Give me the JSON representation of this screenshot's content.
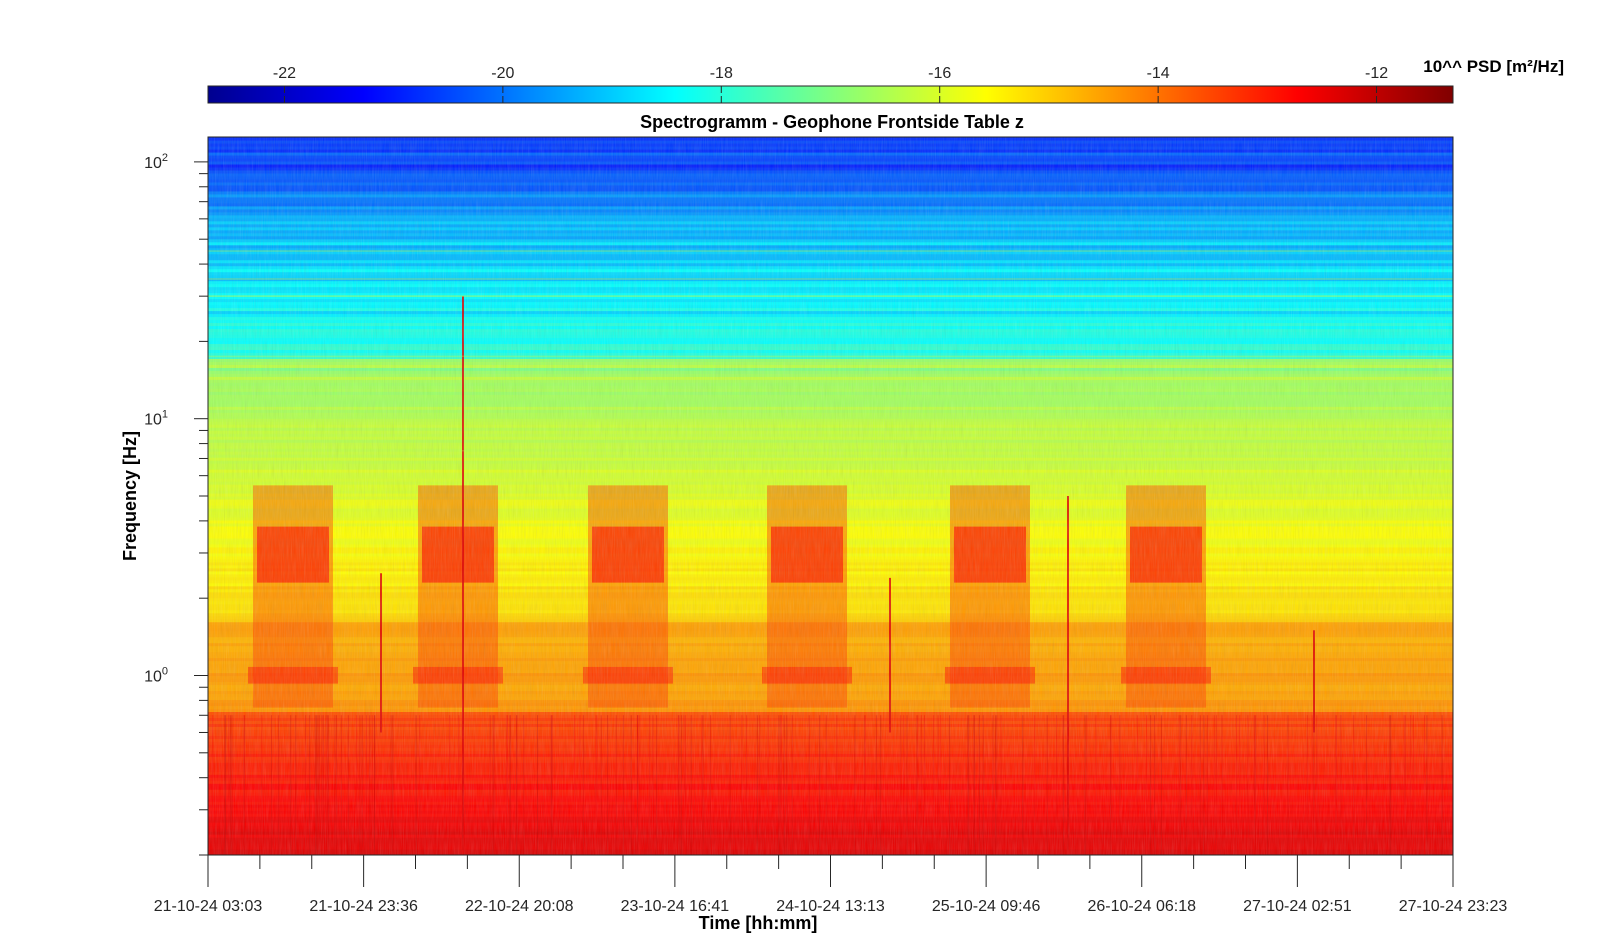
{
  "chart_data": {
    "type": "heatmap",
    "title": "Spectrogramm - Geophone Frontside Table z",
    "xlabel": "Time [hh:mm]",
    "ylabel": "Frequency [Hz]",
    "yscale": "log",
    "ylim": [
      0.2,
      125
    ],
    "x_ticks": [
      "21-10-24 03:03",
      "21-10-24 23:36",
      "22-10-24 20:08",
      "23-10-24 16:41",
      "24-10-24 13:13",
      "25-10-24 09:46",
      "26-10-24 06:18",
      "27-10-24 02:51",
      "27-10-24 23:23"
    ],
    "y_ticks": [
      {
        "base": "10",
        "exp": "0",
        "value": 1
      },
      {
        "base": "10",
        "exp": "1",
        "value": 10
      },
      {
        "base": "10",
        "exp": "2",
        "value": 100
      }
    ],
    "colorbar": {
      "label": "10^^ PSD [m²/Hz]",
      "range": [
        -22.7,
        -11.3
      ],
      "ticks": [
        "-22",
        "-20",
        "-18",
        "-16",
        "-14",
        "-12"
      ],
      "tick_values": [
        -22,
        -20,
        -18,
        -16,
        -14,
        -12
      ],
      "colormap": "jet",
      "placement": "top"
    },
    "grid": false
  }
}
